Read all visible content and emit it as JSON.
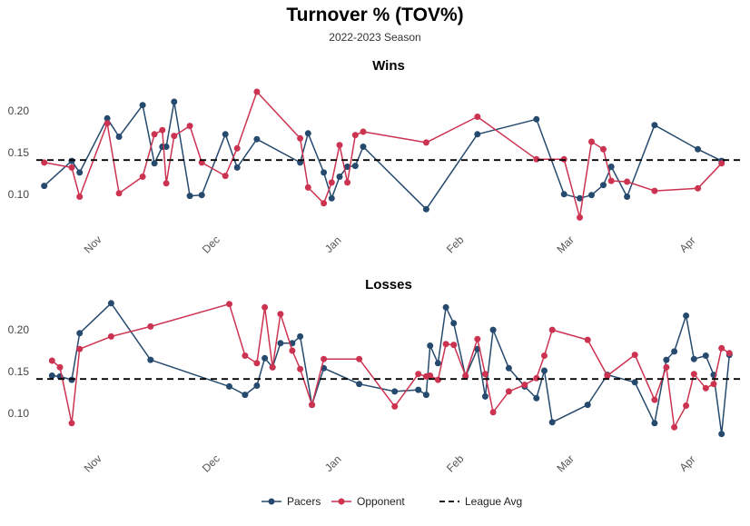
{
  "title": "Turnover % (TOV%)",
  "subtitle": "2022-2023 Season",
  "colors": {
    "pacers": "#264a6e",
    "opponent": "#cc3351",
    "league": "#000000"
  },
  "legend": {
    "pacers": "Pacers",
    "opponent": "Opponent",
    "league": "League Avg"
  },
  "chart_data": {
    "type": "line",
    "league_avg": 0.141,
    "x_unit": "date",
    "month_ticks": [
      {
        "label": "Nov",
        "date": "2022-11-01"
      },
      {
        "label": "Dec",
        "date": "2022-12-01"
      },
      {
        "label": "Jan",
        "date": "2023-01-01"
      },
      {
        "label": "Feb",
        "date": "2023-02-01"
      },
      {
        "label": "Mar",
        "date": "2023-03-01"
      },
      {
        "label": "Apr",
        "date": "2023-04-01"
      }
    ],
    "panels": [
      {
        "title": "Wins",
        "ylim": [
          0.055,
          0.235
        ],
        "yticks": [
          0.1,
          0.15,
          0.2
        ],
        "ytick_labels": [
          "0.10",
          "0.15",
          "0.20"
        ],
        "series": [
          {
            "name": "Pacers",
            "x": [
              "2022-10-19",
              "2022-10-26",
              "2022-10-28",
              "2022-11-04",
              "2022-11-07",
              "2022-11-13",
              "2022-11-16",
              "2022-11-18",
              "2022-11-19",
              "2022-11-21",
              "2022-11-25",
              "2022-11-28",
              "2022-12-04",
              "2022-12-07",
              "2022-12-12",
              "2022-12-23",
              "2022-12-25",
              "2022-12-29",
              "2022-12-31",
              "2023-01-02",
              "2023-01-04",
              "2023-01-06",
              "2023-01-08",
              "2023-01-24",
              "2023-02-06",
              "2023-02-21",
              "2023-02-28",
              "2023-03-04",
              "2023-03-07",
              "2023-03-10",
              "2023-03-12",
              "2023-03-16",
              "2023-03-23",
              "2023-04-03",
              "2023-04-09"
            ],
            "y": [
              0.11,
              0.14,
              0.126,
              0.191,
              0.169,
              0.207,
              0.137,
              0.157,
              0.157,
              0.211,
              0.098,
              0.099,
              0.172,
              0.132,
              0.166,
              0.138,
              0.173,
              0.126,
              0.095,
              0.121,
              0.133,
              0.134,
              0.157,
              0.082,
              0.172,
              0.19,
              0.1,
              0.095,
              0.099,
              0.111,
              0.133,
              0.097,
              0.183,
              0.154,
              0.14
            ]
          },
          {
            "name": "Opponent",
            "x": [
              "2022-10-19",
              "2022-10-26",
              "2022-10-28",
              "2022-11-04",
              "2022-11-07",
              "2022-11-13",
              "2022-11-16",
              "2022-11-18",
              "2022-11-19",
              "2022-11-21",
              "2022-11-25",
              "2022-11-28",
              "2022-12-04",
              "2022-12-07",
              "2022-12-12",
              "2022-12-23",
              "2022-12-25",
              "2022-12-29",
              "2022-12-31",
              "2023-01-02",
              "2023-01-04",
              "2023-01-06",
              "2023-01-08",
              "2023-01-24",
              "2023-02-06",
              "2023-02-21",
              "2023-02-28",
              "2023-03-04",
              "2023-03-07",
              "2023-03-10",
              "2023-03-12",
              "2023-03-16",
              "2023-03-23",
              "2023-04-03",
              "2023-04-09"
            ],
            "y": [
              0.138,
              0.132,
              0.097,
              0.185,
              0.101,
              0.121,
              0.172,
              0.177,
              0.113,
              0.17,
              0.182,
              0.138,
              0.122,
              0.155,
              0.223,
              0.167,
              0.108,
              0.089,
              0.114,
              0.159,
              0.114,
              0.171,
              0.175,
              0.162,
              0.193,
              0.142,
              0.142,
              0.072,
              0.163,
              0.154,
              0.116,
              0.115,
              0.104,
              0.107,
              0.137
            ]
          }
        ]
      },
      {
        "title": "Losses",
        "ylim": [
          0.055,
          0.235
        ],
        "yticks": [
          0.1,
          0.15,
          0.2
        ],
        "ytick_labels": [
          "0.10",
          "0.15",
          "0.20"
        ],
        "series": [
          {
            "name": "Pacers",
            "x": [
              "2022-10-21",
              "2022-10-23",
              "2022-10-26",
              "2022-10-28",
              "2022-11-05",
              "2022-11-15",
              "2022-12-05",
              "2022-12-09",
              "2022-12-12",
              "2022-12-14",
              "2022-12-16",
              "2022-12-18",
              "2022-12-21",
              "2022-12-23",
              "2022-12-26",
              "2022-12-29",
              "2023-01-07",
              "2023-01-16",
              "2023-01-22",
              "2023-01-24",
              "2023-01-25",
              "2023-01-27",
              "2023-01-29",
              "2023-01-31",
              "2023-02-03",
              "2023-02-06",
              "2023-02-08",
              "2023-02-10",
              "2023-02-14",
              "2023-02-18",
              "2023-02-21",
              "2023-02-23",
              "2023-02-25",
              "2023-03-06",
              "2023-03-11",
              "2023-03-18",
              "2023-03-23",
              "2023-03-26",
              "2023-03-28",
              "2023-03-31",
              "2023-04-02",
              "2023-04-05",
              "2023-04-07",
              "2023-04-09",
              "2023-04-11"
            ],
            "y": [
              0.145,
              0.144,
              0.14,
              0.196,
              0.232,
              0.164,
              0.132,
              0.122,
              0.133,
              0.166,
              0.155,
              0.184,
              0.184,
              0.192,
              0.11,
              0.154,
              0.135,
              0.126,
              0.128,
              0.122,
              0.181,
              0.16,
              0.227,
              0.208,
              0.144,
              0.177,
              0.12,
              0.2,
              0.154,
              0.132,
              0.118,
              0.151,
              0.089,
              0.11,
              0.146,
              0.137,
              0.088,
              0.164,
              0.174,
              0.217,
              0.165,
              0.169,
              0.146,
              0.075,
              0.17
            ]
          },
          {
            "name": "Opponent",
            "x": [
              "2022-10-21",
              "2022-10-23",
              "2022-10-26",
              "2022-10-28",
              "2022-11-05",
              "2022-11-15",
              "2022-12-05",
              "2022-12-09",
              "2022-12-12",
              "2022-12-14",
              "2022-12-16",
              "2022-12-18",
              "2022-12-21",
              "2022-12-23",
              "2022-12-26",
              "2022-12-29",
              "2023-01-07",
              "2023-01-16",
              "2023-01-22",
              "2023-01-24",
              "2023-01-25",
              "2023-01-27",
              "2023-01-29",
              "2023-01-31",
              "2023-02-03",
              "2023-02-06",
              "2023-02-08",
              "2023-02-10",
              "2023-02-14",
              "2023-02-18",
              "2023-02-21",
              "2023-02-23",
              "2023-02-25",
              "2023-03-06",
              "2023-03-11",
              "2023-03-18",
              "2023-03-23",
              "2023-03-26",
              "2023-03-28",
              "2023-03-31",
              "2023-04-02",
              "2023-04-05",
              "2023-04-07",
              "2023-04-09",
              "2023-04-11"
            ],
            "y": [
              0.163,
              0.155,
              0.088,
              0.177,
              0.192,
              0.204,
              0.231,
              0.169,
              0.16,
              0.227,
              0.155,
              0.219,
              0.175,
              0.153,
              0.11,
              0.165,
              0.165,
              0.108,
              0.147,
              0.144,
              0.145,
              0.14,
              0.183,
              0.182,
              0.145,
              0.189,
              0.147,
              0.101,
              0.126,
              0.134,
              0.142,
              0.169,
              0.2,
              0.188,
              0.145,
              0.17,
              0.116,
              0.155,
              0.083,
              0.109,
              0.147,
              0.13,
              0.135,
              0.178,
              0.172
            ]
          }
        ]
      }
    ]
  }
}
